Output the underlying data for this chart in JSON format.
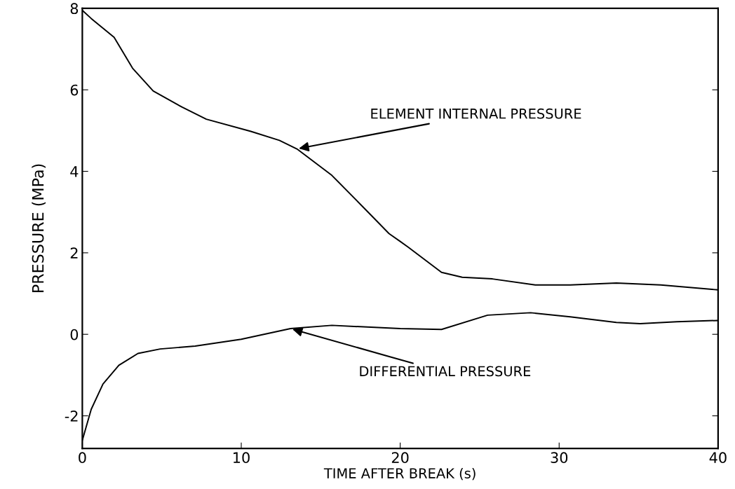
{
  "chart_data": {
    "type": "line",
    "xlabel": "TIME AFTER BREAK (s)",
    "ylabel": "PRESSURE (MPa)",
    "xlim": [
      0,
      40
    ],
    "xticks": [
      0,
      10,
      20,
      30,
      40
    ],
    "ylim": [
      -2.8,
      8
    ],
    "yticks": [
      -2,
      0,
      2,
      4,
      6,
      8
    ],
    "grid": false,
    "marker": "none",
    "line_style": "solid",
    "series": [
      {
        "color": "#000000",
        "x": [
          0,
          0.56,
          2.0,
          3.16,
          4.46,
          6.3,
          7.8,
          10.6,
          12.4,
          13.5,
          15.7,
          17.9,
          19.3,
          20.0,
          20.5,
          22.6,
          23.9,
          25.8,
          28.5,
          30.7,
          33.6,
          36.4,
          40
        ],
        "values": [
          7.95,
          7.75,
          7.29,
          6.53,
          5.97,
          5.57,
          5.28,
          4.98,
          4.76,
          4.55,
          3.9,
          3.03,
          2.47,
          2.28,
          2.14,
          1.52,
          1.4,
          1.36,
          1.21,
          1.21,
          1.26,
          1.21,
          1.09
        ]
      },
      {
        "color": "#000000",
        "x": [
          0,
          0.56,
          1.3,
          2.3,
          3.5,
          4.9,
          7.1,
          10.0,
          13.1,
          15.7,
          20.0,
          22.6,
          25.5,
          28.2,
          30.7,
          33.6,
          35.1,
          37.4,
          40
        ],
        "values": [
          -2.6,
          -1.84,
          -1.22,
          -0.76,
          -0.47,
          -0.36,
          -0.29,
          -0.12,
          0.14,
          0.22,
          0.14,
          0.12,
          0.47,
          0.53,
          0.43,
          0.29,
          0.26,
          0.31,
          0.34
        ]
      }
    ],
    "annotations": [
      {
        "text": "ELEMENT INTERNAL PRESSURE",
        "x": 13.5,
        "y": 4.55
      },
      {
        "text": "DIFFERENTIAL PRESSURE",
        "x": 13.1,
        "y": 0.14
      }
    ]
  }
}
